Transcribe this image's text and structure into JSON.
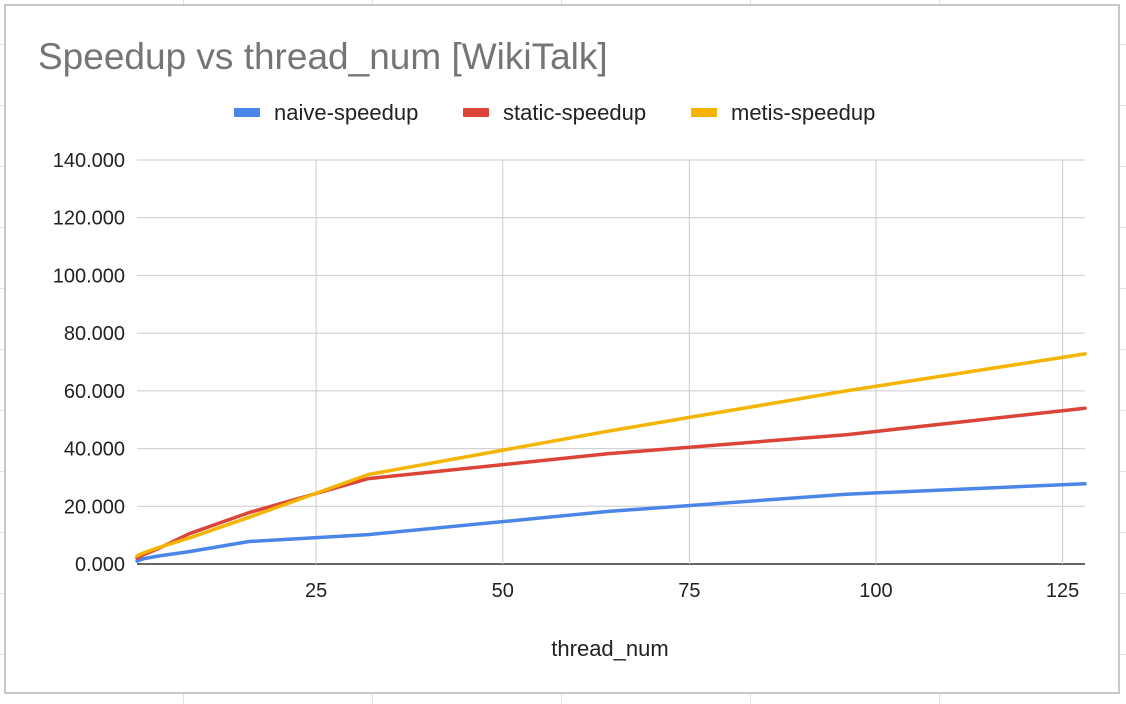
{
  "chart_data": {
    "type": "line",
    "title": "Speedup vs thread_num [WikiTalk]",
    "xlabel": "thread_num",
    "ylabel": "",
    "xlim": [
      1,
      128
    ],
    "ylim": [
      0,
      140
    ],
    "x_ticks": [
      25,
      50,
      75,
      100,
      125
    ],
    "x_tick_labels": [
      "25",
      "50",
      "75",
      "100",
      "125"
    ],
    "y_ticks": [
      0,
      20,
      40,
      60,
      80,
      100,
      120,
      140
    ],
    "y_tick_labels": [
      "0.000",
      "20.000",
      "40.000",
      "60.000",
      "80.000",
      "100.000",
      "120.000",
      "140.000"
    ],
    "grid": true,
    "legend_position": "top-center",
    "series": [
      {
        "name": "naive-speedup",
        "color": "#4a86e8",
        "x": [
          1,
          2,
          4,
          8,
          16,
          32,
          64,
          96,
          128
        ],
        "y": [
          1.0,
          1.9,
          2.8,
          4.3,
          7.8,
          10.2,
          18.2,
          24.2,
          27.8
        ]
      },
      {
        "name": "static-speedup",
        "color": "#db4437",
        "x": [
          1,
          2,
          4,
          8,
          16,
          32,
          64,
          96,
          128
        ],
        "y": [
          2.0,
          3.4,
          5.5,
          10.5,
          17.8,
          29.6,
          38.2,
          44.8,
          54.0
        ]
      },
      {
        "name": "metis-speedup",
        "color": "#f4b400",
        "x": [
          1,
          2,
          4,
          8,
          16,
          32,
          64,
          96,
          128
        ],
        "y": [
          2.8,
          4.0,
          5.8,
          9.0,
          16.2,
          31.0,
          46.0,
          60.0,
          72.8
        ]
      }
    ]
  }
}
